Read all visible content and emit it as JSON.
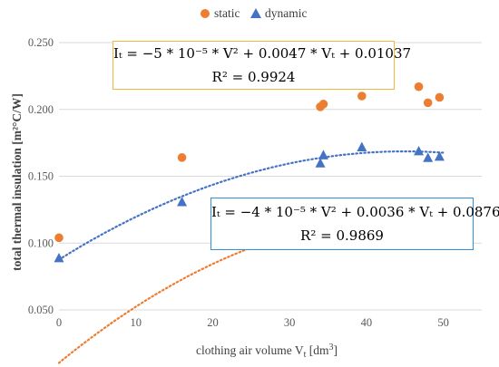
{
  "chart_data": {
    "type": "scatter",
    "xlabel": "clothing air volume V",
    "xlabel_sub": "t",
    "xlabel_unit": " [dm",
    "xlabel_unit_sup": "3",
    "xlabel_unit_end": "]",
    "ylabel": "total thermal insulation [m²°C/W]",
    "xlim": [
      0,
      55
    ],
    "ylim": [
      0.05,
      0.25
    ],
    "x_ticks": [
      "0",
      "10",
      "20",
      "30",
      "40",
      "50"
    ],
    "y_ticks": [
      "0.050",
      "0.100",
      "0.150",
      "0.200",
      "0.250"
    ],
    "grid": "horizontal",
    "legend_position": "top",
    "series": [
      {
        "name": "static",
        "marker": "circle",
        "color": "#ed7d31",
        "points": [
          [
            0,
            0.104
          ],
          [
            16,
            0.164
          ],
          [
            34,
            0.202
          ],
          [
            34.4,
            0.204
          ],
          [
            39.4,
            0.21
          ],
          [
            46.8,
            0.217
          ],
          [
            48,
            0.205
          ],
          [
            49.5,
            0.209
          ]
        ],
        "trendline": {
          "a": -5e-05,
          "b": 0.0047,
          "c": 0.01037
        }
      },
      {
        "name": "dynamic",
        "marker": "triangle",
        "color": "#4472c4",
        "points": [
          [
            0,
            0.089
          ],
          [
            16,
            0.131
          ],
          [
            34,
            0.16
          ],
          [
            34.4,
            0.166
          ],
          [
            39.4,
            0.172
          ],
          [
            46.8,
            0.169
          ],
          [
            48,
            0.164
          ],
          [
            49.5,
            0.165
          ]
        ],
        "trendline": {
          "a": -4e-05,
          "b": 0.0036,
          "c": 0.0876
        }
      }
    ]
  },
  "equations": {
    "static": {
      "line1": "Iₜ = −5 * 10⁻⁵ * V² + 0.0047 * Vₜ + 0.01037",
      "line2": "R² = 0.9924"
    },
    "dynamic": {
      "line1": "Iₜ = −4 * 10⁻⁵ * V² + 0.0036 * Vₜ + 0.0876",
      "line2": "R² = 0.9869"
    }
  }
}
